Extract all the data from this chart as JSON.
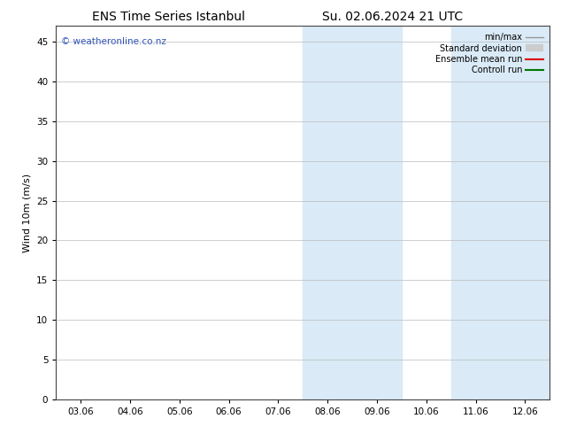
{
  "title_left": "ENS Time Series Istanbul",
  "title_right": "Su. 02.06.2024 21 UTC",
  "ylabel": "Wind 10m (m/s)",
  "watermark": "© weatheronline.co.nz",
  "x_tick_labels": [
    "03.06",
    "04.06",
    "05.06",
    "06.06",
    "07.06",
    "08.06",
    "09.06",
    "10.06",
    "11.06",
    "12.06"
  ],
  "x_tick_positions": [
    0,
    1,
    2,
    3,
    4,
    5,
    6,
    7,
    8,
    9
  ],
  "ylim": [
    0,
    47
  ],
  "yticks": [
    0,
    5,
    10,
    15,
    20,
    25,
    30,
    35,
    40,
    45
  ],
  "xlim": [
    -0.5,
    9.5
  ],
  "shaded_bands": [
    {
      "x_start": 4.5,
      "x_end": 5.5,
      "color": "#daeaf7"
    },
    {
      "x_start": 5.5,
      "x_end": 6.5,
      "color": "#daeaf7"
    },
    {
      "x_start": 7.5,
      "x_end": 8.5,
      "color": "#daeaf7"
    },
    {
      "x_start": 8.5,
      "x_end": 9.5,
      "color": "#daeaf7"
    }
  ],
  "legend_entries": [
    {
      "label": "min/max",
      "color": "#999999",
      "linewidth": 1.0
    },
    {
      "label": "Standard deviation",
      "color": "#cccccc",
      "linewidth": 6
    },
    {
      "label": "Ensemble mean run",
      "color": "#dd0000",
      "linewidth": 1.5
    },
    {
      "label": "Controll run",
      "color": "#007700",
      "linewidth": 1.5
    }
  ],
  "background_color": "#ffffff",
  "plot_bg_color": "#ffffff",
  "grid_color": "#bbbbbb",
  "title_fontsize": 10,
  "axis_fontsize": 8,
  "tick_fontsize": 7.5,
  "watermark_color": "#3355bb",
  "watermark_fontsize": 7.5
}
